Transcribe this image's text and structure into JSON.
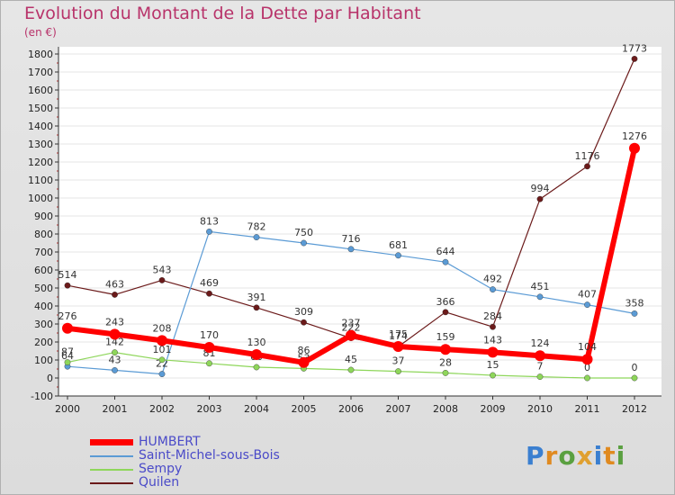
{
  "title": "Evolution du Montant de la Dette par Habitant",
  "subtitle": "(en €)",
  "logo": {
    "letters": [
      "P",
      "r",
      "o",
      "x",
      "i",
      "t",
      "i"
    ],
    "colors": [
      "#3a7fd0",
      "#e08a20",
      "#5aa040",
      "#e0a030",
      "#3a7fd0",
      "#e08a20",
      "#5aa040"
    ]
  },
  "chart_data": {
    "type": "line",
    "x": [
      2000,
      2001,
      2002,
      2003,
      2004,
      2005,
      2006,
      2007,
      2008,
      2009,
      2010,
      2011,
      2012
    ],
    "ylim": [
      -100,
      1800
    ],
    "yticks": [
      -100,
      0,
      100,
      200,
      300,
      400,
      500,
      600,
      700,
      800,
      900,
      1000,
      1100,
      1200,
      1300,
      1400,
      1500,
      1600,
      1700,
      1800
    ],
    "series": [
      {
        "name": "Quilen",
        "color": "#6b1a1a",
        "width": 1.2,
        "values": [
          514,
          463,
          543,
          469,
          391,
          309,
          222,
          174,
          366,
          284,
          994,
          1176,
          1773
        ],
        "labels": [
          "514",
          "463",
          "543",
          "469",
          "391",
          "309",
          "222",
          "174",
          "366",
          "284",
          "994",
          "1176",
          "1773"
        ]
      },
      {
        "name": "Saint-Michel-sous-Bois",
        "color": "#5b9bd5",
        "width": 1.2,
        "values": [
          64,
          43,
          22,
          813,
          782,
          750,
          716,
          681,
          644,
          492,
          451,
          407,
          358
        ],
        "labels": [
          "64",
          "43",
          "22",
          "813",
          "782",
          "750",
          "716",
          "681",
          "644",
          "492",
          "451",
          "407",
          "358"
        ]
      },
      {
        "name": "Sempy",
        "color": "#8ed65a",
        "width": 1.2,
        "values": [
          87,
          142,
          101,
          81,
          60,
          53,
          45,
          37,
          28,
          15,
          7,
          0,
          0
        ],
        "labels": [
          "87",
          "142",
          "101",
          "81",
          "60",
          "53",
          "45",
          "37",
          "28",
          "15",
          "7",
          "0",
          "0"
        ]
      },
      {
        "name": "HUMBERT",
        "color": "#ff0000",
        "width": 6,
        "values": [
          276,
          243,
          208,
          170,
          130,
          86,
          237,
          175,
          159,
          143,
          124,
          104,
          1276
        ],
        "labels": [
          "276",
          "243",
          "208",
          "170",
          "130",
          "86",
          "237",
          "175",
          "159",
          "143",
          "124",
          "104",
          "1276"
        ]
      }
    ],
    "legend_order": [
      "HUMBERT",
      "Saint-Michel-sous-Bois",
      "Sempy",
      "Quilen"
    ]
  }
}
